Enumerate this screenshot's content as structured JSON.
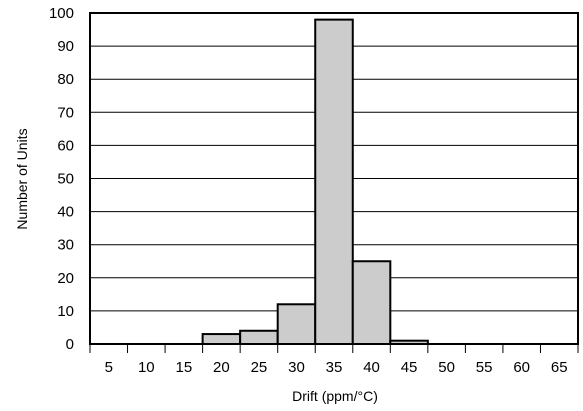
{
  "chart_data": {
    "type": "bar",
    "title": "",
    "xlabel": "Drift (ppm/°C)",
    "ylabel": "Number of Units",
    "categories": [
      "5",
      "10",
      "15",
      "20",
      "25",
      "30",
      "35",
      "40",
      "45",
      "50",
      "55",
      "60",
      "65"
    ],
    "values": [
      0,
      0,
      0,
      3,
      4,
      12,
      98,
      25,
      1,
      0,
      0,
      0,
      0
    ],
    "ylim": [
      0,
      100
    ],
    "yticks": [
      "0",
      "10",
      "20",
      "30",
      "40",
      "50",
      "60",
      "70",
      "80",
      "90",
      "100"
    ],
    "grid": "horizontal",
    "legend": "none",
    "colors": {
      "bar_fill": "#cccccc",
      "bar_stroke": "#000000",
      "grid": "#000000",
      "frame": "#000000"
    }
  }
}
